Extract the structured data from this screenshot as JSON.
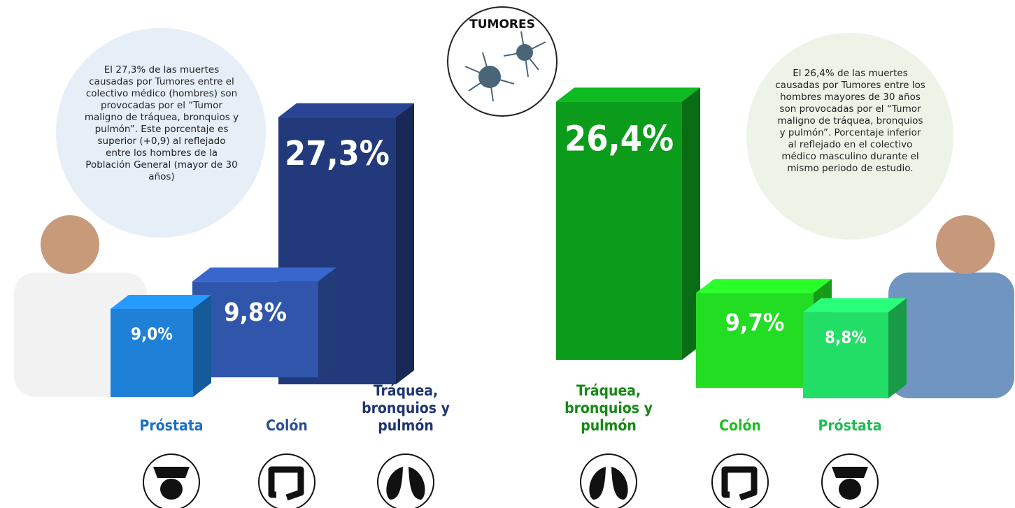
{
  "title": "TUMORES",
  "chart_data": [
    {
      "type": "bar",
      "categories": [
        "Próstata",
        "Colón",
        "Tráquea, bronquios y pulmón"
      ],
      "values": [
        9.0,
        9.8,
        27.3
      ],
      "value_labels": [
        "9,0%",
        "9,8%",
        "27,3%"
      ],
      "colors": [
        "#1f80d8",
        "#2f56aa",
        "#22397c"
      ],
      "label_colors": [
        "#1a6fc4",
        "#2c4f9c",
        "#1f3572"
      ],
      "annotation": "El 27,3% de las muertes causadas por Tumores entre el colectivo médico (hombres) son provocadas por el “Tumor maligno de tráquea, bronquios y pulmón”. Este porcentaje es superior (+0,9) al reflejado entre los hombres de la Población General (mayor de 30 años)"
    },
    {
      "type": "bar",
      "categories": [
        "Tráquea, bronquios y pulmón",
        "Colón",
        "Próstata"
      ],
      "values": [
        26.4,
        9.7,
        8.8
      ],
      "value_labels": [
        "26,4%",
        "9,7%",
        "8,8%"
      ],
      "colors": [
        "#0c9c1c",
        "#22dd22",
        "#22dd66"
      ],
      "label_colors": [
        "#168a16",
        "#22bb22",
        "#22bb55"
      ],
      "annotation": "El 26,4% de las muertes causadas por Tumores entre los hombres mayores de 30 años son provocadas por el “Tumor maligno de tráquea, bronquios y pulmón”. Porcentaje inferior al reflejado en el colectivo médico masculino durante el mismo periodo de estudio."
    }
  ]
}
